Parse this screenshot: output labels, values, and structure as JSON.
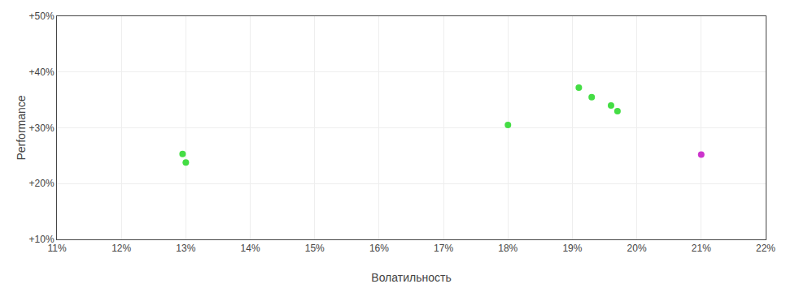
{
  "chart_data": {
    "type": "scatter",
    "xlabel": "Волатильность",
    "ylabel": "Performance",
    "xlim": [
      0.11,
      0.22
    ],
    "ylim": [
      0.1,
      0.5
    ],
    "xticks": [
      {
        "value": 0.11,
        "label": "11%"
      },
      {
        "value": 0.12,
        "label": "12%"
      },
      {
        "value": 0.13,
        "label": "13%"
      },
      {
        "value": 0.14,
        "label": "14%"
      },
      {
        "value": 0.15,
        "label": "15%"
      },
      {
        "value": 0.16,
        "label": "16%"
      },
      {
        "value": 0.17,
        "label": "17%"
      },
      {
        "value": 0.18,
        "label": "18%"
      },
      {
        "value": 0.19,
        "label": "19%"
      },
      {
        "value": 0.2,
        "label": "20%"
      },
      {
        "value": 0.21,
        "label": "21%"
      },
      {
        "value": 0.22,
        "label": "22%"
      }
    ],
    "yticks": [
      {
        "value": 0.1,
        "label": "+10%"
      },
      {
        "value": 0.2,
        "label": "+20%"
      },
      {
        "value": 0.3,
        "label": "+30%"
      },
      {
        "value": 0.4,
        "label": "+40%"
      },
      {
        "value": 0.5,
        "label": "+50%"
      }
    ],
    "grid": true,
    "marker": "circle",
    "series": [
      {
        "color": "#44dd44",
        "x": [
          0.1295,
          0.13,
          0.18,
          0.191,
          0.193,
          0.196,
          0.197
        ],
        "values": [
          0.253,
          0.238,
          0.305,
          0.372,
          0.355,
          0.34,
          0.33
        ]
      },
      {
        "color": "#cc33cc",
        "x": [
          0.21
        ],
        "values": [
          0.252
        ]
      }
    ]
  }
}
